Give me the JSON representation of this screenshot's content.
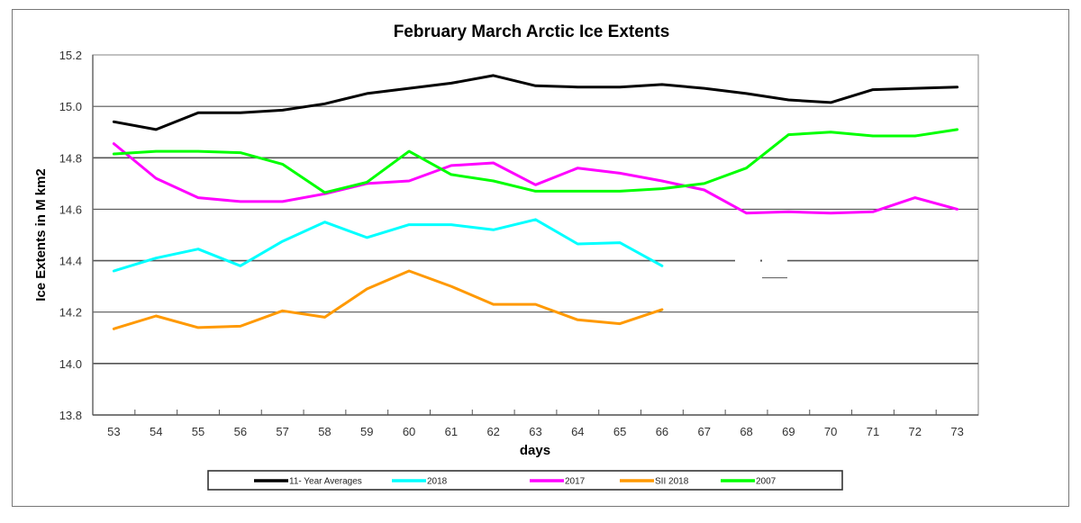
{
  "chart_data": {
    "type": "line",
    "title": "February March Arctic Ice Extents",
    "xlabel": "days",
    "ylabel": "Ice Extents in M km2",
    "ylim": [
      13.8,
      15.2
    ],
    "yticks": [
      "13.8",
      "14.0",
      "14.2",
      "14.4",
      "14.6",
      "14.8",
      "15.0",
      "15.2"
    ],
    "x": [
      53,
      54,
      55,
      56,
      57,
      58,
      59,
      60,
      61,
      62,
      63,
      64,
      65,
      66,
      67,
      68,
      69,
      70,
      71,
      72,
      73
    ],
    "grid": true,
    "legend_position": "bottom",
    "series": [
      {
        "name": "11- Year Averages",
        "color": "#000000",
        "values": [
          14.94,
          14.91,
          14.975,
          14.975,
          14.985,
          15.01,
          15.05,
          15.07,
          15.09,
          15.12,
          15.08,
          15.075,
          15.075,
          15.085,
          15.07,
          15.05,
          15.025,
          15.015,
          15.065,
          15.07,
          15.075
        ]
      },
      {
        "name": "2018",
        "color": "#00ffff",
        "values": [
          14.36,
          14.41,
          14.445,
          14.38,
          14.475,
          14.55,
          14.49,
          14.54,
          14.54,
          14.52,
          14.56,
          14.465,
          14.47,
          14.38,
          null,
          null,
          null,
          null,
          null,
          null,
          null
        ]
      },
      {
        "name": "2017",
        "color": "#ff00ff",
        "values": [
          14.855,
          14.72,
          14.645,
          14.63,
          14.63,
          14.66,
          14.7,
          14.71,
          14.77,
          14.78,
          14.695,
          14.76,
          14.74,
          14.71,
          14.675,
          14.585,
          14.59,
          14.585,
          14.59,
          14.645,
          14.6
        ]
      },
      {
        "name": "SII 2018",
        "color": "#ff9900",
        "values": [
          14.135,
          14.185,
          14.14,
          14.145,
          14.205,
          14.18,
          14.29,
          14.36,
          14.3,
          14.23,
          14.23,
          14.17,
          14.155,
          14.21,
          null,
          null,
          null,
          null,
          null,
          null,
          null
        ]
      },
      {
        "name": "2007",
        "color": "#00ff00",
        "values": [
          14.815,
          14.825,
          14.825,
          14.82,
          14.775,
          14.665,
          14.705,
          14.825,
          14.735,
          14.71,
          14.67,
          14.67,
          14.67,
          14.68,
          14.7,
          14.76,
          14.89,
          14.9,
          14.885,
          14.885,
          14.91
        ]
      }
    ]
  }
}
